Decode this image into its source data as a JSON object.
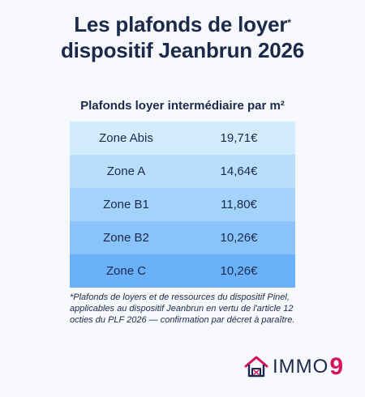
{
  "title": {
    "line1": "Les plafonds de loyer",
    "asterisk": "*",
    "line2": "dispositif Jeanbrun 2026"
  },
  "table": {
    "heading": "Plafonds loyer intermédiaire par m²",
    "rows": [
      {
        "zone": "Zone Abis",
        "value": "19,71€"
      },
      {
        "zone": "Zone A",
        "value": "14,64€"
      },
      {
        "zone": "Zone B1",
        "value": "11,80€"
      },
      {
        "zone": "Zone B2",
        "value": "10,26€"
      },
      {
        "zone": "Zone C",
        "value": "10,26€"
      }
    ],
    "row_colors": [
      "#d2ecfd",
      "#b8defc",
      "#a3d2fb",
      "#89c3fa",
      "#6ab1f9"
    ]
  },
  "footnote": "*Plafonds de loyers et de ressources du dispositif Pinel, applicables au dispositif Jeanbrun en vertu de l'article 12 octies du PLF 2026 — confirmation par décret à paraître.",
  "logo": {
    "text": "IMMO",
    "nine": "9",
    "icon": "house-icon",
    "accent_color": "#d4145a"
  }
}
